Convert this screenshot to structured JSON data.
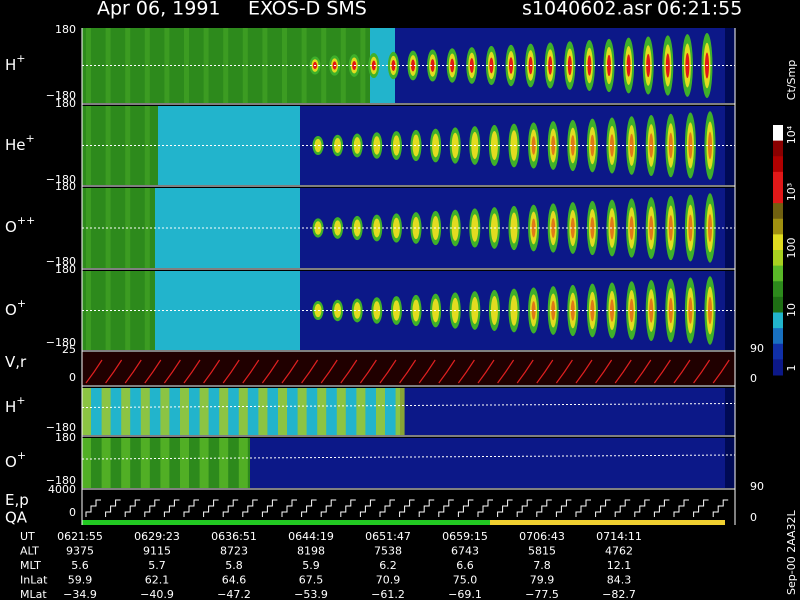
{
  "header": {
    "date": "Apr 06, 1991",
    "instrument": "EXOS-D SMS",
    "file": "s1040602.asr",
    "time": "06:21:55"
  },
  "panels": [
    {
      "label": "H",
      "charge": "+",
      "top": "180",
      "bottom": "−180"
    },
    {
      "label": "He",
      "charge": "+",
      "top": "180",
      "bottom": "−180"
    },
    {
      "label": "O",
      "charge": "++",
      "top": "180",
      "bottom": "−180"
    },
    {
      "label": "O",
      "charge": "+",
      "top": "180",
      "bottom": "−180"
    },
    {
      "label": "V,r",
      "top": "25",
      "bottom": "0",
      "right_top": "90",
      "right_bottom": "0"
    },
    {
      "label": "H",
      "charge": "+",
      "bottom": "−180"
    },
    {
      "label": "O",
      "charge": "+",
      "top": "180",
      "bottom": "−180"
    },
    {
      "label": "E,p",
      "top": "4000",
      "bottom": "0",
      "right_top": "90",
      "right_bottom": "0"
    }
  ],
  "qa_label": "QA",
  "colorbar": {
    "title": "Ct/Smp",
    "labels": [
      "10⁴",
      "10³",
      "100",
      "10",
      "1"
    ]
  },
  "table": {
    "rows": [
      [
        "UT",
        "0621:55",
        "0629:23",
        "0636:51",
        "0644:19",
        "0651:47",
        "0659:15",
        "0706:43",
        "0714:11"
      ],
      [
        "ALT",
        "9375",
        "9115",
        "8723",
        "8198",
        "7538",
        "6743",
        "5815",
        "4762"
      ],
      [
        "MLT",
        "5.6",
        "5.7",
        "5.8",
        "5.9",
        "6.2",
        "6.6",
        "7.8",
        "12.1"
      ],
      [
        "InLat",
        "59.9",
        "62.1",
        "64.6",
        "67.5",
        "70.9",
        "75.0",
        "79.9",
        "84.3"
      ],
      [
        "MLat",
        "−34.9",
        "−40.9",
        "−47.2",
        "−53.9",
        "−61.2",
        "−69.1",
        "−77.5",
        "−82.7"
      ]
    ]
  },
  "footer": "Sep-00  2AA32L"
}
